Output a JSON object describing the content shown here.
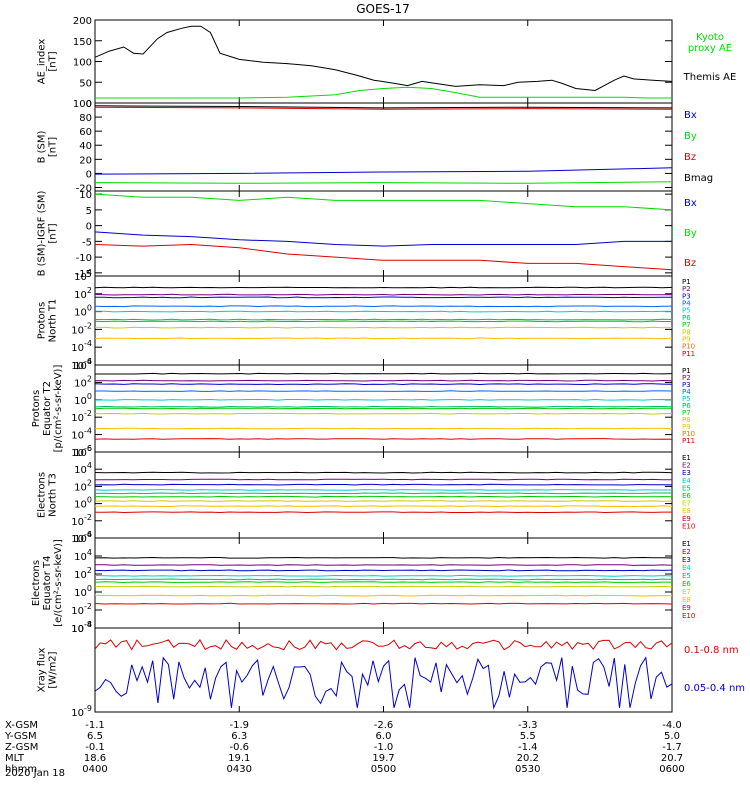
{
  "title": "GOES-17",
  "colors": {
    "black": "#000000",
    "green": "#00dd00",
    "blue": "#0000cc",
    "red": "#dd0000",
    "P": [
      "#000000",
      "#770077",
      "#0000cc",
      "#0066ff",
      "#00cccc",
      "#00bb66",
      "#00cc00",
      "#cccc00",
      "#ffbb00",
      "#ff6600",
      "#dd0000"
    ]
  },
  "x_axis": {
    "ticks": [
      "0400",
      "0430",
      "0500",
      "0530",
      "0600"
    ],
    "rows": [
      {
        "label": "X-GSM",
        "values": [
          "-1.1",
          "-1.9",
          "-2.6",
          "-3.3",
          "-4.0"
        ]
      },
      {
        "label": "Y-GSM",
        "values": [
          "6.5",
          "6.3",
          "6.0",
          "5.5",
          "5.0"
        ]
      },
      {
        "label": "Z-GSM",
        "values": [
          "-0.1",
          "-0.6",
          "-1.0",
          "-1.4",
          "-1.7"
        ]
      },
      {
        "label": "MLT",
        "values": [
          "18.6",
          "19.1",
          "19.7",
          "20.2",
          "20.7"
        ]
      },
      {
        "label": "hhmm",
        "values": [
          "0400",
          "0430",
          "0500",
          "0530",
          "0600"
        ]
      }
    ],
    "date": "2020 Jan 18"
  },
  "chart_data": [
    {
      "type": "line",
      "ylabel": [
        "AE_index",
        "[nT]"
      ],
      "ylim": [
        0,
        200
      ],
      "yticks": [
        "0",
        "50",
        "100",
        "150",
        "200"
      ],
      "x_range": [
        "0400",
        "0600"
      ],
      "series": [
        {
          "name": "Kyoto proxy AE",
          "label_lines": [
            "Kyoto",
            "proxy AE"
          ],
          "color": "#00dd00",
          "points": [
            [
              0,
              12
            ],
            [
              10,
              12
            ],
            [
              20,
              12
            ],
            [
              30,
              12
            ],
            [
              40,
              14
            ],
            [
              50,
              20
            ],
            [
              55,
              30
            ],
            [
              60,
              35
            ],
            [
              65,
              38
            ],
            [
              70,
              35
            ],
            [
              75,
              25
            ],
            [
              80,
              14
            ],
            [
              90,
              14
            ],
            [
              100,
              14
            ],
            [
              110,
              14
            ],
            [
              115,
              12
            ],
            [
              120,
              12
            ]
          ]
        },
        {
          "name": "Themis AE",
          "label_lines": [
            "Themis AE"
          ],
          "color": "#000000",
          "points": [
            [
              0,
              110
            ],
            [
              3,
              125
            ],
            [
              6,
              135
            ],
            [
              8,
              120
            ],
            [
              10,
              118
            ],
            [
              13,
              155
            ],
            [
              15,
              170
            ],
            [
              18,
              180
            ],
            [
              20,
              185
            ],
            [
              22,
              185
            ],
            [
              24,
              170
            ],
            [
              26,
              120
            ],
            [
              30,
              105
            ],
            [
              35,
              98
            ],
            [
              40,
              95
            ],
            [
              45,
              90
            ],
            [
              50,
              80
            ],
            [
              55,
              65
            ],
            [
              58,
              55
            ],
            [
              62,
              48
            ],
            [
              65,
              42
            ],
            [
              68,
              52
            ],
            [
              72,
              45
            ],
            [
              75,
              40
            ],
            [
              80,
              44
            ],
            [
              85,
              42
            ],
            [
              88,
              50
            ],
            [
              92,
              52
            ],
            [
              95,
              55
            ],
            [
              97,
              48
            ],
            [
              100,
              35
            ],
            [
              104,
              30
            ],
            [
              108,
              55
            ],
            [
              110,
              65
            ],
            [
              112,
              58
            ],
            [
              116,
              55
            ],
            [
              120,
              52
            ]
          ]
        }
      ]
    },
    {
      "type": "line",
      "ylabel": [
        "B (SM)",
        "[nT]"
      ],
      "ylim": [
        -25,
        100
      ],
      "yticks": [
        "-20",
        "0",
        "20",
        "40",
        "60",
        "80",
        "100"
      ],
      "series": [
        {
          "name": "Bx",
          "label_lines": [
            "Bx"
          ],
          "color": "#0000cc",
          "points": [
            [
              0,
              -1
            ],
            [
              30,
              0
            ],
            [
              60,
              2
            ],
            [
              90,
              3
            ],
            [
              120,
              8
            ]
          ]
        },
        {
          "name": "By",
          "label_lines": [
            "By"
          ],
          "color": "#00dd00",
          "points": [
            [
              0,
              -13
            ],
            [
              30,
              -14
            ],
            [
              60,
              -13
            ],
            [
              90,
              -14
            ],
            [
              120,
              -12
            ]
          ]
        },
        {
          "name": "Bz",
          "label_lines": [
            "Bz"
          ],
          "color": "#dd0000",
          "points": [
            [
              0,
              94
            ],
            [
              30,
              93
            ],
            [
              60,
              91
            ],
            [
              90,
              92
            ],
            [
              120,
              91
            ]
          ]
        },
        {
          "name": "Bmag",
          "label_lines": [
            "Bmag"
          ],
          "color": "#000000",
          "points": [
            [
              0,
              96
            ],
            [
              30,
              95
            ],
            [
              60,
              93
            ],
            [
              90,
              94
            ],
            [
              120,
              93
            ]
          ]
        }
      ]
    },
    {
      "type": "line",
      "ylabel": [
        "B (SM)-IGRF (SM)",
        "[nT]"
      ],
      "ylim": [
        -16,
        11
      ],
      "yticks": [
        "-15",
        "-10",
        "-5",
        "0",
        "5",
        "10"
      ],
      "series": [
        {
          "name": "Bx",
          "label_lines": [
            "Bx"
          ],
          "color": "#0000cc",
          "points": [
            [
              0,
              -2
            ],
            [
              10,
              -3
            ],
            [
              20,
              -3.5
            ],
            [
              30,
              -4.5
            ],
            [
              40,
              -5
            ],
            [
              50,
              -6
            ],
            [
              60,
              -6.5
            ],
            [
              70,
              -6
            ],
            [
              80,
              -6
            ],
            [
              90,
              -6
            ],
            [
              100,
              -6
            ],
            [
              110,
              -5
            ],
            [
              120,
              -5
            ]
          ]
        },
        {
          "name": "By",
          "label_lines": [
            "By"
          ],
          "color": "#00dd00",
          "points": [
            [
              0,
              10
            ],
            [
              10,
              9
            ],
            [
              20,
              9
            ],
            [
              30,
              8
            ],
            [
              40,
              9
            ],
            [
              50,
              8
            ],
            [
              60,
              8
            ],
            [
              70,
              8
            ],
            [
              80,
              8
            ],
            [
              90,
              7
            ],
            [
              100,
              6
            ],
            [
              110,
              6
            ],
            [
              120,
              5
            ]
          ]
        },
        {
          "name": "Bz",
          "label_lines": [
            "Bz"
          ],
          "color": "#dd0000",
          "points": [
            [
              0,
              -6
            ],
            [
              10,
              -6.5
            ],
            [
              20,
              -6
            ],
            [
              30,
              -7
            ],
            [
              40,
              -9
            ],
            [
              50,
              -10
            ],
            [
              60,
              -11
            ],
            [
              70,
              -11
            ],
            [
              80,
              -11
            ],
            [
              90,
              -12
            ],
            [
              100,
              -12
            ],
            [
              110,
              -13
            ],
            [
              120,
              -14
            ]
          ]
        }
      ]
    },
    {
      "type": "line",
      "log": true,
      "ylabel": [
        "Protons",
        "North T1"
      ],
      "ylim": [
        -6,
        4
      ],
      "yticks": [
        "10^-6",
        "10^-4",
        "10^-2",
        "10^0",
        "10^2",
        "10^4"
      ],
      "series": [
        {
          "name": "P1",
          "color": "#000000",
          "level": 2.7
        },
        {
          "name": "P2",
          "color": "#770077",
          "level": 1.9
        },
        {
          "name": "P3",
          "color": "#0000cc",
          "level": 1.6
        },
        {
          "name": "P4",
          "color": "#0066ff",
          "level": 0.6
        },
        {
          "name": "P5",
          "color": "#00cccc",
          "level": 0.0
        },
        {
          "name": "P6",
          "color": "#00bb66",
          "level": -0.9
        },
        {
          "name": "P7",
          "color": "#00cc00",
          "level": -1.1
        },
        {
          "name": "P8",
          "color": "#cccc00",
          "level": -1.8
        },
        {
          "name": "P9",
          "color": "#ffbb00",
          "level": -3.0
        },
        {
          "name": "P10",
          "color": "#ff6600",
          "level": null
        },
        {
          "name": "P11",
          "color": "#dd0000",
          "level": null
        }
      ]
    },
    {
      "type": "line",
      "log": true,
      "ylabel": [
        "Protons",
        "Equator T2",
        "[p/(cm²-s-sr-keV)]"
      ],
      "ylim": [
        -6,
        4
      ],
      "yticks": [
        "10^-6",
        "10^-4",
        "10^-2",
        "10^0",
        "10^2",
        "10^4"
      ],
      "series": [
        {
          "name": "P1",
          "color": "#000000",
          "level": 3.0
        },
        {
          "name": "P2",
          "color": "#770077",
          "level": 2.2
        },
        {
          "name": "P3",
          "color": "#0000cc",
          "level": 1.8
        },
        {
          "name": "P4",
          "color": "#0066ff",
          "level": 1.0
        },
        {
          "name": "P5",
          "color": "#00cccc",
          "level": 0.0
        },
        {
          "name": "P6",
          "color": "#00bb66",
          "level": -0.8
        },
        {
          "name": "P7",
          "color": "#00cc00",
          "level": -1.0
        },
        {
          "name": "P8",
          "color": "#cccc00",
          "level": -1.6
        },
        {
          "name": "P9",
          "color": "#ffbb00",
          "level": -3.3
        },
        {
          "name": "P10",
          "color": "#ff6600",
          "level": null
        },
        {
          "name": "P11",
          "color": "#dd0000",
          "level": -4.5
        }
      ]
    },
    {
      "type": "line",
      "log": true,
      "ylabel": [
        "Electrons",
        "North T3"
      ],
      "ylim": [
        -4,
        6
      ],
      "yticks": [
        "10^-4",
        "10^-2",
        "10^0",
        "10^2",
        "10^4",
        "10^6"
      ],
      "series": [
        {
          "name": "E1",
          "color": "#000000",
          "level": 3.6
        },
        {
          "name": "E2",
          "color": "#770077",
          "level": 2.8
        },
        {
          "name": "E3",
          "color": "#0000cc",
          "level": 2.2
        },
        {
          "name": "E4",
          "color": "#00cccc",
          "level": 1.6
        },
        {
          "name": "E5",
          "color": "#00bb66",
          "level": 1.2
        },
        {
          "name": "E6",
          "color": "#00cc00",
          "level": 0.8
        },
        {
          "name": "E7",
          "color": "#cccc00",
          "level": 0.3
        },
        {
          "name": "E8",
          "color": "#ffbb00",
          "level": -0.3
        },
        {
          "name": "E9",
          "color": "#dd0000",
          "level": -1.0
        },
        {
          "name": "E10",
          "color": "#dd0000",
          "level": null
        }
      ]
    },
    {
      "type": "line",
      "log": true,
      "ylabel": [
        "Electrons",
        "Equator T4",
        "[e/(cm²-s-sr-keV)]"
      ],
      "ylim": [
        -4,
        6
      ],
      "yticks": [
        "10^-4",
        "10^-2",
        "10^0",
        "10^2",
        "10^4",
        "10^6"
      ],
      "series": [
        {
          "name": "E1",
          "color": "#000000",
          "level": 3.8
        },
        {
          "name": "E2",
          "color": "#770077",
          "level": 3.0
        },
        {
          "name": "E3",
          "color": "#0000cc",
          "level": 2.4
        },
        {
          "name": "E4",
          "color": "#00cccc",
          "level": 1.8
        },
        {
          "name": "E5",
          "color": "#00bb66",
          "level": 1.4
        },
        {
          "name": "E6",
          "color": "#00cc00",
          "level": 1.1
        },
        {
          "name": "E7",
          "color": "#cccc00",
          "level": 0.6
        },
        {
          "name": "E8",
          "color": "#ffbb00",
          "level": -0.4
        },
        {
          "name": "E9",
          "color": "#dd0000",
          "level": -1.3
        },
        {
          "name": "E10",
          "color": "#dd0000",
          "level": null
        }
      ]
    },
    {
      "type": "line",
      "log": true,
      "ylabel": [
        "Xray flux",
        "[W/m2]"
      ],
      "ylim": [
        -9,
        -8
      ],
      "yticks": [
        "10^-9",
        "10^-8"
      ],
      "series": [
        {
          "name": "0.1-0.8 nm",
          "color": "#dd0000",
          "level": -8.2
        },
        {
          "name": "0.05-0.4 nm",
          "color": "#0000cc",
          "level": -8.6
        }
      ]
    }
  ]
}
